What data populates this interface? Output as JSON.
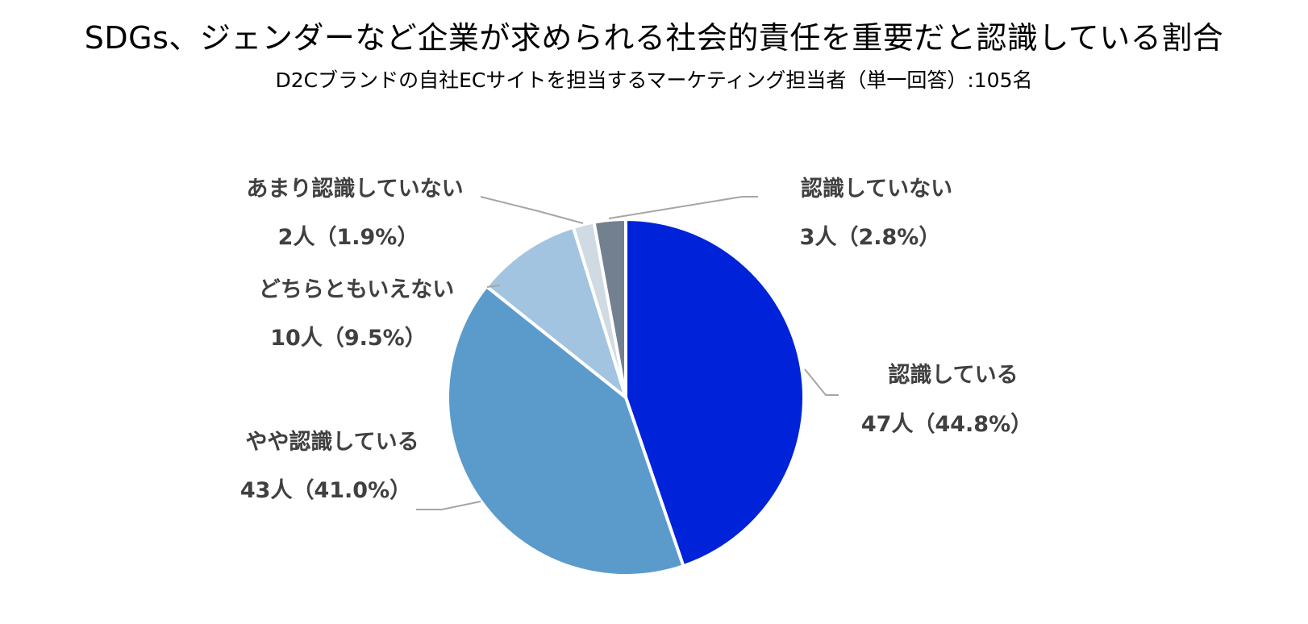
{
  "chart_data": {
    "type": "pie",
    "title": "SDGs、ジェンダーなど企業が求められる社会的責任を重要だと認識している割合",
    "subtitle": "D2Cブランドの自社ECサイトを担当するマーケティング担当者（単一回答）:105名",
    "slices": [
      {
        "category": "認識している",
        "count": 47,
        "count_label": "47人（44.8%）",
        "percent": 44.8,
        "color": "#0023D9"
      },
      {
        "category": "やや認識している",
        "count": 43,
        "count_label": "43人（41.0%）",
        "percent": 41.0,
        "color": "#5B9BCC"
      },
      {
        "category": "どちらともいえない",
        "count": 10,
        "count_label": "10人（9.5%）",
        "percent": 9.5,
        "color": "#A3C4E0"
      },
      {
        "category": "あまり認識していない",
        "count": 2,
        "count_label": "2人（1.9%）",
        "percent": 1.9,
        "color": "#D0DAE3"
      },
      {
        "category": "認識していない",
        "count": 3,
        "count_label": "3人（2.8%）",
        "percent": 2.8,
        "color": "#728090"
      }
    ],
    "start_angle": "12 o'clock",
    "direction": "clockwise",
    "legend": "none"
  }
}
